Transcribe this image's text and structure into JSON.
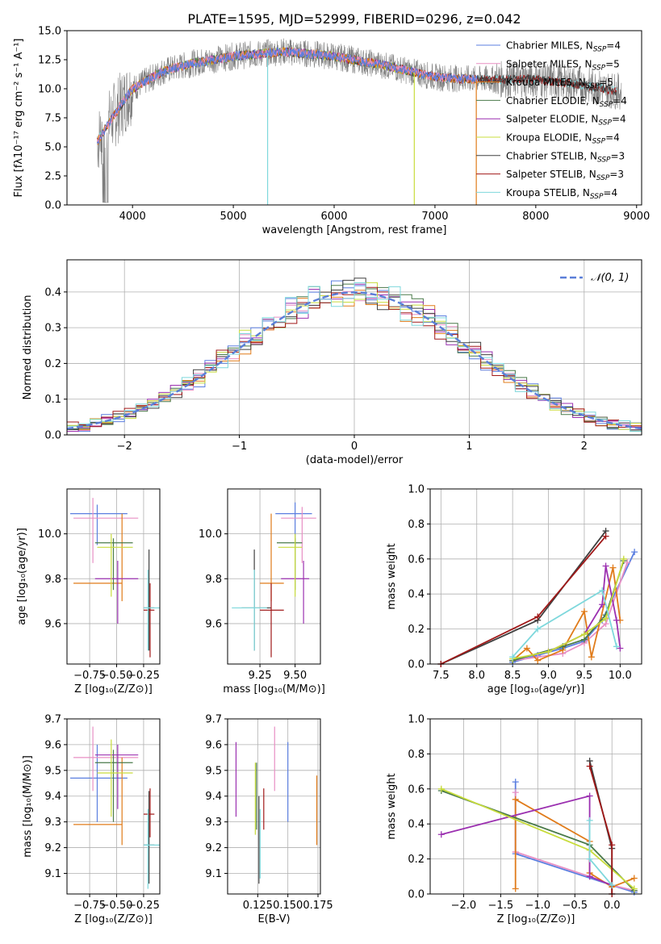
{
  "title": "PLATE=1595, MJD=52999, FIBERID=0296, z=0.042",
  "colors": {
    "Chabrier MILES": "#5b7fe0",
    "Salpeter MILES": "#e88fc4",
    "Kroupa MILES": "#e07b1a",
    "Chabrier ELODIE": "#4a7a4a",
    "Salpeter ELODIE": "#9b30b0",
    "Kroupa ELODIE": "#c8dc3c",
    "Chabrier STELIB": "#404040",
    "Salpeter STELIB": "#a01818",
    "Kroupa STELIB": "#7ed8dc",
    "observed": "#7f7f7f",
    "normal": "#5b7fd8"
  },
  "chart_data": [
    {
      "id": "spectrum",
      "type": "line",
      "xlabel": "wavelength [Angstrom, rest frame]",
      "ylabel": "Flux [fλ10⁻¹⁷ erg cm⁻² s⁻¹ A⁻¹]",
      "xlim": [
        3350,
        9050
      ],
      "ylim": [
        0,
        15
      ],
      "xticks": [
        "4000",
        "5000",
        "6000",
        "7000",
        "8000",
        "9000"
      ],
      "yticks": [
        "0.0",
        "2.5",
        "5.0",
        "7.5",
        "10.0",
        "12.5",
        "15.0"
      ],
      "legend_position": "top-right",
      "legend": [
        {
          "name": "Chabrier MILES",
          "n": "4"
        },
        {
          "name": "Salpeter MILES",
          "n": "5"
        },
        {
          "name": "Kroupa MILES",
          "n": "5"
        },
        {
          "name": "Chabrier ELODIE",
          "n": "4"
        },
        {
          "name": "Salpeter ELODIE",
          "n": "4"
        },
        {
          "name": "Kroupa ELODIE",
          "n": "4"
        },
        {
          "name": "Chabrier STELIB",
          "n": "3"
        },
        {
          "name": "Salpeter STELIB",
          "n": "3"
        },
        {
          "name": "Kroupa STELIB",
          "n": "4"
        }
      ],
      "legend_subscript": "SSP",
      "observed_range": [
        3650,
        8850
      ],
      "model_ranges": {
        "MILES": [
          3650,
          7420
        ],
        "ELODIE": [
          3900,
          6800
        ],
        "STELIB": [
          3650,
          8800
        ]
      },
      "continuum": {
        "x": [
          3650,
          3800,
          4000,
          4300,
          4600,
          5000,
          5500,
          6000,
          6500,
          7000,
          7400,
          8000,
          8500,
          8800
        ],
        "y": [
          5.5,
          7.5,
          10.0,
          11.5,
          12.2,
          12.8,
          13.2,
          12.8,
          12.0,
          11.0,
          10.8,
          10.8,
          10.3,
          9.8
        ]
      }
    },
    {
      "id": "residuals",
      "type": "bar",
      "xlabel": "(data-model)/error",
      "ylabel": "Normed distribution",
      "xlim": [
        -2.5,
        2.5
      ],
      "ylim": [
        0,
        0.49
      ],
      "xticks": [
        "−2",
        "−1",
        "0",
        "1",
        "2"
      ],
      "yticks": [
        "0.0",
        "0.1",
        "0.2",
        "0.3",
        "0.4"
      ],
      "grid": true,
      "bin_width": 0.1,
      "legend_position": "top-right",
      "legend": "𝒩(0, 1)"
    },
    {
      "id": "age-vs-Z",
      "type": "scatter",
      "xlabel": "Z [log₁₀(Z/Z⊙)]",
      "ylabel": "age  [log₁₀(age/yr)]",
      "xlim": [
        -0.96,
        -0.1
      ],
      "ylim": [
        9.42,
        10.2
      ],
      "xticks": [
        {
          "v": -0.75,
          "t": "−0.75"
        },
        {
          "v": -0.5,
          "t": "−0.50"
        },
        {
          "v": -0.25,
          "t": "−0.25"
        }
      ],
      "yticks": [
        {
          "v": 9.6,
          "t": "9.6"
        },
        {
          "v": 9.8,
          "t": "9.8"
        },
        {
          "v": 10.0,
          "t": "10.0"
        }
      ],
      "points": [
        {
          "x": -0.68,
          "y": 10.09,
          "xlo": -0.93,
          "xhi": -0.4,
          "ylo": 9.95,
          "yhi": 10.13,
          "s": 0
        },
        {
          "x": -0.72,
          "y": 10.07,
          "xlo": -0.9,
          "xhi": -0.3,
          "ylo": 9.87,
          "yhi": 10.16,
          "s": 1
        },
        {
          "x": -0.45,
          "y": 9.78,
          "xlo": -0.9,
          "xhi": -0.45,
          "ylo": 9.7,
          "yhi": 10.09,
          "s": 2
        },
        {
          "x": -0.53,
          "y": 9.96,
          "xlo": -0.7,
          "xhi": -0.35,
          "ylo": 9.75,
          "yhi": 9.98,
          "s": 3
        },
        {
          "x": -0.49,
          "y": 9.8,
          "xlo": -0.7,
          "xhi": -0.3,
          "ylo": 9.6,
          "yhi": 9.88,
          "s": 4
        },
        {
          "x": -0.55,
          "y": 9.94,
          "xlo": -0.68,
          "xhi": -0.35,
          "ylo": 9.72,
          "yhi": 10.0,
          "s": 5
        },
        {
          "x": -0.2,
          "y": 9.67,
          "xlo": -0.25,
          "xhi": -0.15,
          "ylo": 9.48,
          "yhi": 9.93,
          "s": 6
        },
        {
          "x": -0.19,
          "y": 9.66,
          "xlo": -0.25,
          "xhi": -0.15,
          "ylo": 9.45,
          "yhi": 9.78,
          "s": 7
        },
        {
          "x": -0.21,
          "y": 9.67,
          "xlo": -0.25,
          "xhi": -0.1,
          "ylo": 9.48,
          "yhi": 9.84,
          "s": 8
        }
      ]
    },
    {
      "id": "age-vs-mass",
      "type": "scatter",
      "xlabel": "mass [log₁₀(M/M⊙)]",
      "ylabel": "",
      "xlim": [
        9.02,
        9.68
      ],
      "ylim": [
        9.42,
        10.2
      ],
      "xticks": [
        {
          "v": 9.25,
          "t": "9.25"
        },
        {
          "v": 9.5,
          "t": "9.50"
        }
      ],
      "yticks": [
        {
          "v": 9.6,
          "t": "9.6"
        },
        {
          "v": 9.8,
          "t": "9.8"
        },
        {
          "v": 10.0,
          "t": "10.0"
        }
      ],
      "points": [
        {
          "x": 9.5,
          "y": 10.09,
          "xlo": 9.36,
          "xhi": 9.62,
          "ylo": 9.95,
          "yhi": 10.14,
          "s": 0
        },
        {
          "x": 9.55,
          "y": 10.07,
          "xlo": 9.4,
          "xhi": 9.65,
          "ylo": 9.87,
          "yhi": 10.12,
          "s": 1
        },
        {
          "x": 9.33,
          "y": 9.78,
          "xlo": 9.25,
          "xhi": 9.42,
          "ylo": 9.7,
          "yhi": 10.09,
          "s": 2
        },
        {
          "x": 9.5,
          "y": 9.96,
          "xlo": 9.37,
          "xhi": 9.55,
          "ylo": 9.75,
          "yhi": 9.98,
          "s": 3
        },
        {
          "x": 9.56,
          "y": 9.8,
          "xlo": 9.4,
          "xhi": 9.6,
          "ylo": 9.6,
          "yhi": 9.88,
          "s": 4
        },
        {
          "x": 9.5,
          "y": 9.94,
          "xlo": 9.38,
          "xhi": 9.55,
          "ylo": 9.72,
          "yhi": 10.0,
          "s": 5
        },
        {
          "x": 9.21,
          "y": 9.67,
          "xlo": 9.12,
          "xhi": 9.33,
          "ylo": 9.48,
          "yhi": 9.93,
          "s": 6
        },
        {
          "x": 9.33,
          "y": 9.66,
          "xlo": 9.25,
          "xhi": 9.42,
          "ylo": 9.45,
          "yhi": 9.78,
          "s": 7
        },
        {
          "x": 9.21,
          "y": 9.67,
          "xlo": 9.05,
          "xhi": 9.3,
          "ylo": 9.48,
          "yhi": 9.84,
          "s": 8
        }
      ]
    },
    {
      "id": "weight-vs-age",
      "type": "line",
      "xlabel": "age  [log₁₀(age/yr)]",
      "ylabel": "mass weight",
      "xlim": [
        7.35,
        10.3
      ],
      "ylim": [
        0,
        1.0
      ],
      "xticks": [
        {
          "v": 7.5,
          "t": "7.5"
        },
        {
          "v": 8.0,
          "t": "8.0"
        },
        {
          "v": 8.5,
          "t": "8.5"
        },
        {
          "v": 9.0,
          "t": "9.0"
        },
        {
          "v": 9.5,
          "t": "9.5"
        },
        {
          "v": 10.0,
          "t": "10.0"
        }
      ],
      "yticks": [
        {
          "v": 0,
          "t": "0.0"
        },
        {
          "v": 0.2,
          "t": "0.2"
        },
        {
          "v": 0.4,
          "t": "0.4"
        },
        {
          "v": 0.6,
          "t": "0.6"
        },
        {
          "v": 0.8,
          "t": "0.8"
        },
        {
          "v": 1.0,
          "t": "1.0"
        }
      ],
      "grid": true,
      "series": [
        {
          "s": 0,
          "x": [
            8.5,
            8.85,
            9.2,
            9.5,
            9.75,
            10.2
          ],
          "y": [
            0.01,
            0.05,
            0.09,
            0.13,
            0.25,
            0.64
          ]
        },
        {
          "s": 1,
          "x": [
            8.5,
            8.85,
            9.2,
            9.5,
            9.8,
            10.1
          ],
          "y": [
            0.02,
            0.04,
            0.06,
            0.12,
            0.23,
            0.58
          ]
        },
        {
          "s": 2,
          "x": [
            8.5,
            8.7,
            8.85,
            9.2,
            9.5,
            9.6,
            9.9,
            10.0
          ],
          "y": [
            0.02,
            0.09,
            0.02,
            0.08,
            0.3,
            0.04,
            0.55,
            0.25
          ]
        },
        {
          "s": 3,
          "x": [
            8.5,
            9.2,
            9.5,
            9.8,
            10.05
          ],
          "y": [
            0.02,
            0.1,
            0.14,
            0.28,
            0.59
          ]
        },
        {
          "s": 4,
          "x": [
            9.0,
            9.5,
            9.75,
            9.8,
            9.95,
            10.0
          ],
          "y": [
            0.07,
            0.17,
            0.34,
            0.56,
            0.25,
            0.09
          ]
        },
        {
          "s": 5,
          "x": [
            8.5,
            9.0,
            9.5,
            9.8,
            10.05
          ],
          "y": [
            0.03,
            0.07,
            0.17,
            0.26,
            0.6
          ]
        },
        {
          "s": 6,
          "x": [
            7.5,
            8.85,
            9.8
          ],
          "y": [
            0.0,
            0.25,
            0.76
          ]
        },
        {
          "s": 7,
          "x": [
            7.5,
            8.85,
            9.8
          ],
          "y": [
            0.0,
            0.27,
            0.73
          ]
        },
        {
          "s": 8,
          "x": [
            8.5,
            8.85,
            9.75,
            9.95
          ],
          "y": [
            0.04,
            0.2,
            0.42,
            0.1
          ]
        }
      ]
    },
    {
      "id": "mass-vs-Z",
      "type": "scatter",
      "xlabel": "Z [log₁₀(Z/Z⊙)]",
      "ylabel": "mass [log₁₀(M/M⊙)]",
      "xlim": [
        -0.96,
        -0.1
      ],
      "ylim": [
        9.02,
        9.7
      ],
      "xticks": [
        {
          "v": -0.75,
          "t": "−0.75"
        },
        {
          "v": -0.5,
          "t": "−0.50"
        },
        {
          "v": -0.25,
          "t": "−0.25"
        }
      ],
      "yticks": [
        {
          "v": 9.1,
          "t": "9.1"
        },
        {
          "v": 9.2,
          "t": "9.2"
        },
        {
          "v": 9.3,
          "t": "9.3"
        },
        {
          "v": 9.4,
          "t": "9.4"
        },
        {
          "v": 9.5,
          "t": "9.5"
        },
        {
          "v": 9.6,
          "t": "9.6"
        },
        {
          "v": 9.7,
          "t": "9.7"
        }
      ],
      "points": [
        {
          "x": -0.68,
          "y": 9.47,
          "xlo": -0.93,
          "xhi": -0.4,
          "ylo": 9.3,
          "yhi": 9.6,
          "s": 0
        },
        {
          "x": -0.72,
          "y": 9.55,
          "xlo": -0.9,
          "xhi": -0.3,
          "ylo": 9.42,
          "yhi": 9.67,
          "s": 1
        },
        {
          "x": -0.45,
          "y": 9.29,
          "xlo": -0.9,
          "xhi": -0.45,
          "ylo": 9.21,
          "yhi": 9.55,
          "s": 2
        },
        {
          "x": -0.53,
          "y": 9.53,
          "xlo": -0.7,
          "xhi": -0.35,
          "ylo": 9.3,
          "yhi": 9.58,
          "s": 3
        },
        {
          "x": -0.49,
          "y": 9.56,
          "xlo": -0.7,
          "xhi": -0.3,
          "ylo": 9.35,
          "yhi": 9.6,
          "s": 4
        },
        {
          "x": -0.55,
          "y": 9.49,
          "xlo": -0.68,
          "xhi": -0.35,
          "ylo": 9.32,
          "yhi": 9.62,
          "s": 5
        },
        {
          "x": -0.2,
          "y": 9.21,
          "xlo": -0.25,
          "xhi": -0.15,
          "ylo": 9.06,
          "yhi": 9.42,
          "s": 6
        },
        {
          "x": -0.19,
          "y": 9.33,
          "xlo": -0.25,
          "xhi": -0.15,
          "ylo": 9.24,
          "yhi": 9.43,
          "s": 7
        },
        {
          "x": -0.21,
          "y": 9.21,
          "xlo": -0.25,
          "xhi": -0.1,
          "ylo": 9.04,
          "yhi": 9.35,
          "s": 8
        }
      ]
    },
    {
      "id": "mass-vs-EBV",
      "type": "scatter",
      "xlabel": "E(B-V)",
      "ylabel": "",
      "xlim": [
        0.1,
        0.177
      ],
      "ylim": [
        9.02,
        9.7
      ],
      "xticks": [
        {
          "v": 0.125,
          "t": "0.125"
        },
        {
          "v": 0.15,
          "t": "0.150"
        },
        {
          "v": 0.175,
          "t": "0.175"
        }
      ],
      "yticks": [
        {
          "v": 9.1,
          "t": "9.1"
        },
        {
          "v": 9.2,
          "t": "9.2"
        },
        {
          "v": 9.3,
          "t": "9.3"
        },
        {
          "v": 9.4,
          "t": "9.4"
        },
        {
          "v": 9.5,
          "t": "9.5"
        },
        {
          "v": 9.6,
          "t": "9.6"
        },
        {
          "v": 9.7,
          "t": "9.7"
        }
      ],
      "points": [
        {
          "x": 0.15,
          "y": 9.47,
          "ylo": 9.3,
          "yhi": 9.61,
          "s": 0
        },
        {
          "x": 0.139,
          "y": 9.5,
          "ylo": 9.42,
          "yhi": 9.67,
          "s": 1
        },
        {
          "x": 0.174,
          "y": 9.35,
          "ylo": 9.21,
          "yhi": 9.48,
          "s": 2
        },
        {
          "x": 0.124,
          "y": 9.4,
          "ylo": 9.27,
          "yhi": 9.53,
          "s": 3
        },
        {
          "x": 0.107,
          "y": 9.45,
          "ylo": 9.32,
          "yhi": 9.61,
          "s": 4
        },
        {
          "x": 0.123,
          "y": 9.4,
          "ylo": 9.25,
          "yhi": 9.53,
          "s": 5
        },
        {
          "x": 0.126,
          "y": 9.22,
          "ylo": 9.06,
          "yhi": 9.4,
          "s": 6
        },
        {
          "x": 0.13,
          "y": 9.35,
          "ylo": 9.27,
          "yhi": 9.43,
          "s": 7
        },
        {
          "x": 0.127,
          "y": 9.22,
          "ylo": 9.08,
          "yhi": 9.35,
          "s": 8
        }
      ]
    },
    {
      "id": "weight-vs-Z",
      "type": "line",
      "xlabel": "Z [log₁₀(Z/Z⊙)]",
      "ylabel": "mass weight",
      "xlim": [
        -2.45,
        0.4
      ],
      "ylim": [
        0,
        1.0
      ],
      "xticks": [
        {
          "v": -2.0,
          "t": "−2.0"
        },
        {
          "v": -1.5,
          "t": "−1.5"
        },
        {
          "v": -1.0,
          "t": "−1.0"
        },
        {
          "v": -0.5,
          "t": "−0.5"
        },
        {
          "v": 0.0,
          "t": "0.0"
        }
      ],
      "yticks": [
        {
          "v": 0,
          "t": "0.0"
        },
        {
          "v": 0.2,
          "t": "0.2"
        },
        {
          "v": 0.4,
          "t": "0.4"
        },
        {
          "v": 0.6,
          "t": "0.6"
        },
        {
          "v": 0.8,
          "t": "0.8"
        },
        {
          "v": 1.0,
          "t": "1.0"
        }
      ],
      "grid": true,
      "series": [
        {
          "s": 0,
          "x": [
            -1.3,
            -1.3,
            0.0,
            0.3
          ],
          "y": [
            0.64,
            0.23,
            0.05,
            0.01
          ]
        },
        {
          "s": 1,
          "x": [
            -1.3,
            -1.3,
            -0.3,
            0.0,
            0.3
          ],
          "y": [
            0.58,
            0.24,
            0.1,
            0.05,
            0.02
          ]
        },
        {
          "s": 2,
          "x": [
            -1.3,
            -1.3,
            -0.3,
            -0.3,
            0.0,
            0.3
          ],
          "y": [
            0.03,
            0.54,
            0.3,
            0.12,
            0.04,
            0.09
          ]
        },
        {
          "s": 3,
          "x": [
            -2.3,
            -0.3,
            0.3
          ],
          "y": [
            0.59,
            0.28,
            0.02
          ]
        },
        {
          "s": 4,
          "x": [
            -2.3,
            -0.3,
            -0.3,
            0.0
          ],
          "y": [
            0.34,
            0.56,
            0.1,
            0.05
          ]
        },
        {
          "s": 5,
          "x": [
            -2.3,
            -0.3,
            0.3
          ],
          "y": [
            0.6,
            0.25,
            0.03
          ]
        },
        {
          "s": 6,
          "x": [
            -0.3,
            0.0,
            0.0
          ],
          "y": [
            0.76,
            0.26,
            0.0
          ]
        },
        {
          "s": 7,
          "x": [
            -0.3,
            0.0,
            0.0
          ],
          "y": [
            0.73,
            0.28,
            0.0
          ]
        },
        {
          "s": 8,
          "x": [
            -0.3,
            -0.3,
            0.0
          ],
          "y": [
            0.42,
            0.2,
            0.05
          ]
        }
      ]
    }
  ]
}
